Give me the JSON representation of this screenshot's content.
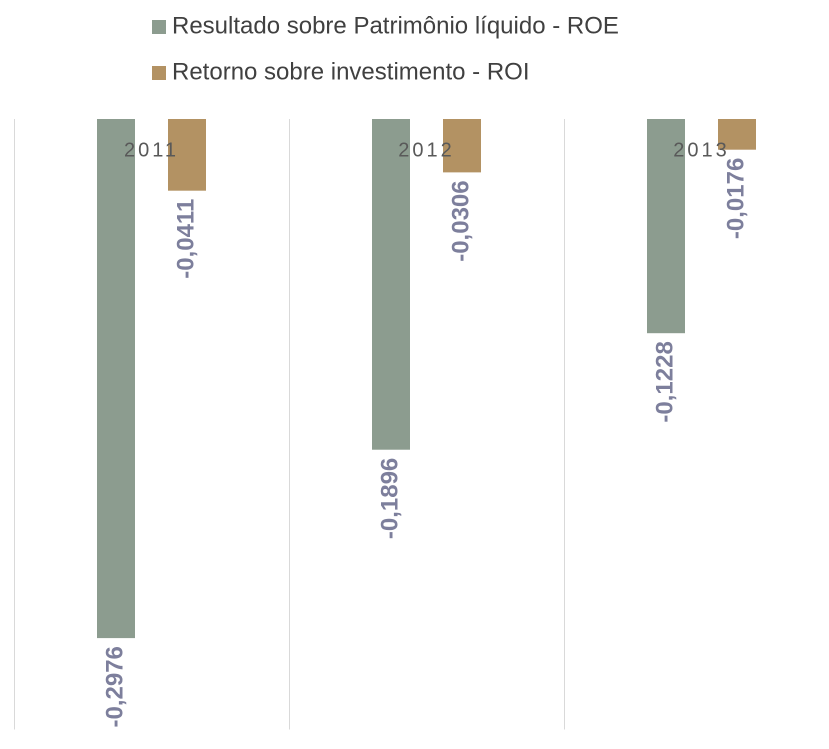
{
  "chart_data": {
    "type": "bar",
    "categories": [
      "2011",
      "2012",
      "2013"
    ],
    "series": [
      {
        "name": "Resultado sobre Patrimônio líquido - ROE",
        "color": "#8c9c8f",
        "values": [
          -0.2976,
          -0.1896,
          -0.1228
        ],
        "value_labels": [
          "-0,2976",
          "-0,1896",
          "-0,1228"
        ]
      },
      {
        "name": "Retorno sobre investimento - ROI",
        "color": "#b39263",
        "values": [
          -0.0411,
          -0.0306,
          -0.0176
        ],
        "value_labels": [
          "-0,0411",
          "-0,0306",
          "-0,0176"
        ]
      }
    ],
    "ylim": [
      -0.35,
      0
    ]
  }
}
